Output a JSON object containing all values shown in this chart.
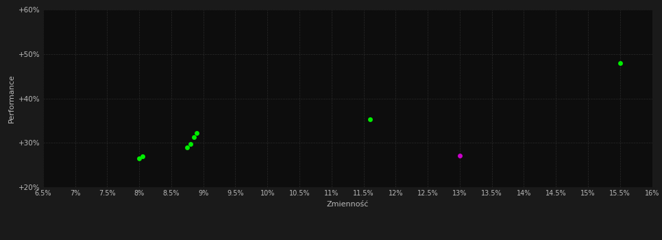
{
  "background_color": "#1a1a1a",
  "plot_bg_color": "#0d0d0d",
  "grid_color": "#2a2a2a",
  "text_color": "#bbbbbb",
  "xlabel": "Zmienność",
  "ylabel": "Performance",
  "xlim": [
    0.065,
    0.16
  ],
  "ylim": [
    0.2,
    0.6
  ],
  "xticks": [
    0.065,
    0.07,
    0.075,
    0.08,
    0.085,
    0.09,
    0.095,
    0.1,
    0.105,
    0.11,
    0.115,
    0.12,
    0.125,
    0.13,
    0.135,
    0.14,
    0.145,
    0.15,
    0.155,
    0.16
  ],
  "xtick_labels": [
    "6.5%",
    "7%",
    "7.5%",
    "8%",
    "8.5%",
    "9%",
    "9.5%",
    "10%",
    "10.5%",
    "11%",
    "11.5%",
    "12%",
    "12.5%",
    "13%",
    "13.5%",
    "14%",
    "14.5%",
    "15%",
    "15.5%",
    "16%"
  ],
  "yticks": [
    0.2,
    0.3,
    0.4,
    0.5,
    0.6
  ],
  "ytick_labels": [
    "+20%",
    "+30%",
    "+40%",
    "+50%",
    "+60%"
  ],
  "green_points": [
    [
      0.08,
      0.265
    ],
    [
      0.0805,
      0.27
    ],
    [
      0.0875,
      0.289
    ],
    [
      0.088,
      0.297
    ],
    [
      0.0885,
      0.313
    ],
    [
      0.089,
      0.322
    ],
    [
      0.116,
      0.353
    ],
    [
      0.155,
      0.48
    ]
  ],
  "magenta_points": [
    [
      0.13,
      0.271
    ]
  ],
  "green_color": "#00ee00",
  "magenta_color": "#cc00cc",
  "marker_size": 25,
  "figure_width": 9.66,
  "figure_height": 3.5,
  "dpi": 100
}
